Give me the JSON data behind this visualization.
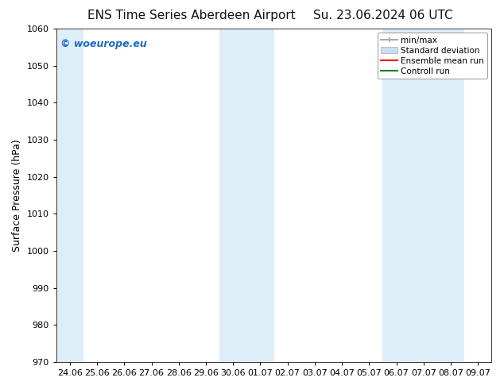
{
  "title_left": "ENS Time Series Aberdeen Airport",
  "title_right": "Su. 23.06.2024 06 UTC",
  "ylabel": "Surface Pressure (hPa)",
  "ylim": [
    970,
    1060
  ],
  "yticks": [
    970,
    980,
    990,
    1000,
    1010,
    1020,
    1030,
    1040,
    1050,
    1060
  ],
  "xtick_labels": [
    "24.06",
    "25.06",
    "26.06",
    "27.06",
    "28.06",
    "29.06",
    "30.06",
    "01.07",
    "02.07",
    "03.07",
    "04.07",
    "05.07",
    "06.07",
    "07.07",
    "08.07",
    "09.07"
  ],
  "shaded_band_indices": [
    {
      "xstart": -0.5,
      "xend": 0.5
    },
    {
      "xstart": 5.5,
      "xend": 7.5
    },
    {
      "xstart": 11.5,
      "xend": 14.5
    }
  ],
  "shaded_color": "#ddeef8",
  "watermark_text": "© woeurope.eu",
  "watermark_color": "#1a6abf",
  "background_color": "#ffffff",
  "plot_bg_color": "#ffffff",
  "legend_items": [
    {
      "label": "min/max",
      "color": "#aaaaaa",
      "lw": 1.5
    },
    {
      "label": "Standard deviation",
      "color": "#ccddee",
      "lw": 8
    },
    {
      "label": "Ensemble mean run",
      "color": "#ff0000",
      "lw": 1.5
    },
    {
      "label": "Controll run",
      "color": "#008000",
      "lw": 1.5
    }
  ],
  "title_fontsize": 11,
  "axis_label_fontsize": 9,
  "tick_fontsize": 8,
  "watermark_fontsize": 9
}
